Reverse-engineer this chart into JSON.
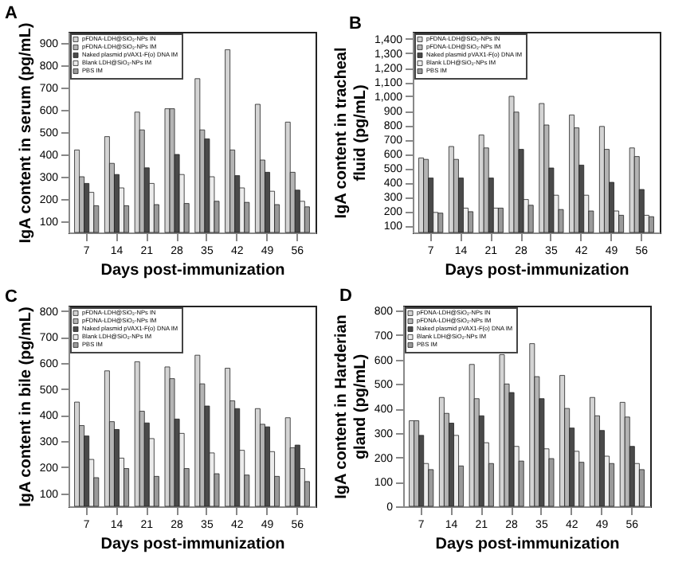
{
  "chart_data": [
    {
      "type": "bar",
      "title": "A",
      "xlabel": "Days post-immunization",
      "ylabel": "IgA content in serum (pg/mL)",
      "categories": [
        "7",
        "14",
        "21",
        "28",
        "35",
        "42",
        "49",
        "56"
      ],
      "ylim": [
        50,
        950
      ],
      "yticks": [
        100,
        200,
        300,
        400,
        500,
        600,
        700,
        800,
        900
      ],
      "legend": "top left",
      "grid": false,
      "series": [
        {
          "name": "pFDNA-LDH@SiO₂-NPs IN",
          "color": "#d4d4d4",
          "values": [
            420,
            480,
            590,
            605,
            740,
            870,
            625,
            545
          ]
        },
        {
          "name": "pFDNA-LDH@SiO₂-NPs IM",
          "color": "#b4b4b4",
          "values": [
            300,
            360,
            510,
            605,
            510,
            420,
            375,
            320
          ]
        },
        {
          "name": "Naked plasmid pVAX1-F(o) DNA IM",
          "color": "#4a4a4a",
          "values": [
            270,
            310,
            340,
            400,
            470,
            305,
            320,
            240
          ]
        },
        {
          "name": "Blank LDH@SiO₂-NPs IM",
          "color": "#ececec",
          "values": [
            230,
            250,
            270,
            310,
            300,
            250,
            235,
            190
          ]
        },
        {
          "name": "PBS IM",
          "color": "#9a9a9a",
          "values": [
            170,
            170,
            175,
            180,
            190,
            185,
            175,
            165
          ]
        }
      ]
    },
    {
      "type": "bar",
      "title": "B",
      "xlabel": "Days post-immunization",
      "ylabel": "IgA content in tracheal fluid (pg/mL)",
      "categories": [
        "7",
        "14",
        "21",
        "28",
        "35",
        "42",
        "49",
        "56"
      ],
      "ylim": [
        50,
        1450
      ],
      "yticks": [
        100,
        200,
        300,
        400,
        500,
        600,
        700,
        800,
        900,
        {
          "value": 1000,
          "label": "1,000"
        },
        {
          "value": 1100,
          "label": "1,100"
        },
        {
          "value": 1200,
          "label": "1,200"
        },
        {
          "value": 1300,
          "label": "1,300"
        },
        {
          "value": 1400,
          "label": "1,400"
        }
      ],
      "legend": "top left",
      "grid": false,
      "series": [
        {
          "name": "pFDNA-LDH@SiO₂-NPs IN",
          "color": "#d4d4d4",
          "values": [
            570,
            650,
            730,
            1000,
            950,
            870,
            790,
            640
          ]
        },
        {
          "name": "pFDNA-LDH@SiO₂-NPs IM",
          "color": "#b4b4b4",
          "values": [
            560,
            560,
            640,
            890,
            800,
            780,
            630,
            580
          ]
        },
        {
          "name": "Naked plasmid pVAX1-F(o) DNA IM",
          "color": "#4a4a4a",
          "values": [
            430,
            430,
            430,
            630,
            500,
            520,
            400,
            350
          ]
        },
        {
          "name": "Blank LDH@SiO₂-NPs IM",
          "color": "#ececec",
          "values": [
            190,
            220,
            220,
            280,
            310,
            310,
            200,
            170
          ]
        },
        {
          "name": "PBS IM",
          "color": "#9a9a9a",
          "values": [
            185,
            195,
            220,
            240,
            210,
            200,
            170,
            160
          ]
        }
      ]
    },
    {
      "type": "bar",
      "title": "C",
      "xlabel": "Days post-immunization",
      "ylabel": "IgA content in bile (pg/mL)",
      "categories": [
        "7",
        "14",
        "21",
        "28",
        "35",
        "42",
        "49",
        "56"
      ],
      "ylim": [
        50,
        820
      ],
      "yticks": [
        100,
        200,
        300,
        400,
        500,
        600,
        700,
        800
      ],
      "legend": "top left",
      "grid": false,
      "series": [
        {
          "name": "pFDNA-LDH@SiO₂-NPs IN",
          "color": "#d4d4d4",
          "values": [
            450,
            570,
            605,
            585,
            630,
            580,
            425,
            390
          ]
        },
        {
          "name": "pFDNA-LDH@SiO₂-NPs IM",
          "color": "#b4b4b4",
          "values": [
            360,
            375,
            415,
            540,
            520,
            455,
            365,
            275
          ]
        },
        {
          "name": "Naked plasmid pVAX1-F(o) DNA IM",
          "color": "#4a4a4a",
          "values": [
            320,
            345,
            370,
            385,
            435,
            425,
            355,
            285
          ]
        },
        {
          "name": "Blank LDH@SiO₂-NPs IM",
          "color": "#ececec",
          "values": [
            230,
            235,
            310,
            330,
            255,
            265,
            260,
            195
          ]
        },
        {
          "name": "PBS IM",
          "color": "#9a9a9a",
          "values": [
            160,
            195,
            165,
            195,
            175,
            170,
            165,
            145
          ]
        }
      ]
    },
    {
      "type": "bar",
      "title": "D",
      "xlabel": "Days post-immunization",
      "ylabel": "IgA content in Harderian gland (pg/mL)",
      "categories": [
        "7",
        "14",
        "21",
        "28",
        "35",
        "42",
        "49",
        "56"
      ],
      "ylim": [
        0,
        820
      ],
      "yticks": [
        0,
        100,
        200,
        300,
        400,
        500,
        600,
        700,
        800
      ],
      "legend": "top left",
      "grid": false,
      "series": [
        {
          "name": "pFDNA-LDH@SiO₂-NPs IN",
          "color": "#d4d4d4",
          "values": [
            350,
            445,
            580,
            620,
            665,
            535,
            445,
            425
          ]
        },
        {
          "name": "pFDNA-LDH@SiO₂-NPs IM",
          "color": "#b4b4b4",
          "values": [
            350,
            380,
            440,
            500,
            530,
            400,
            370,
            365
          ]
        },
        {
          "name": "Naked plasmid pVAX1-F(o) DNA IM",
          "color": "#4a4a4a",
          "values": [
            290,
            340,
            370,
            465,
            440,
            320,
            310,
            245
          ]
        },
        {
          "name": "Blank LDH@SiO₂-NPs IM",
          "color": "#ececec",
          "values": [
            175,
            290,
            260,
            245,
            235,
            225,
            205,
            175
          ]
        },
        {
          "name": "PBS IM",
          "color": "#9a9a9a",
          "values": [
            150,
            165,
            175,
            185,
            195,
            180,
            175,
            150
          ]
        }
      ]
    }
  ]
}
